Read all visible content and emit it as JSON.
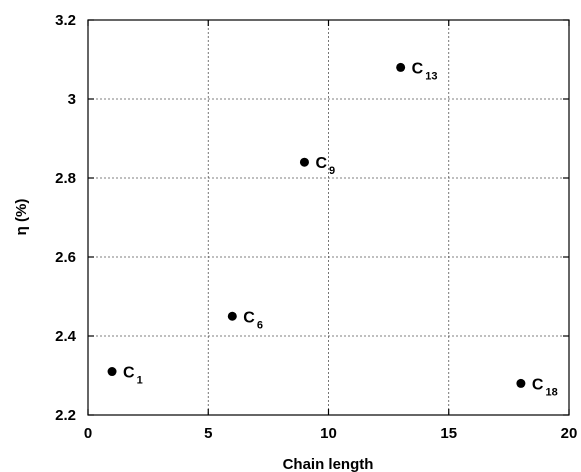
{
  "chart_data": {
    "type": "scatter",
    "title": "",
    "xlabel": "Chain length",
    "ylabel": "η (%)",
    "xlim": [
      0,
      20
    ],
    "ylim": [
      2.2,
      3.2
    ],
    "x_ticks": [
      "0",
      "5",
      "10",
      "15",
      "20"
    ],
    "y_ticks": [
      "2.2",
      "2.4",
      "2.6",
      "2.8",
      "3",
      "3.2"
    ],
    "grid": true,
    "marker_color": "#000000",
    "points": [
      {
        "x": 1,
        "y": 2.31,
        "label": "C",
        "sub": "1"
      },
      {
        "x": 6,
        "y": 2.45,
        "label": "C",
        "sub": "6"
      },
      {
        "x": 9,
        "y": 2.84,
        "label": "C",
        "sub": "9"
      },
      {
        "x": 13,
        "y": 3.08,
        "label": "C",
        "sub": "13"
      },
      {
        "x": 18,
        "y": 2.28,
        "label": "C",
        "sub": "18"
      }
    ]
  }
}
